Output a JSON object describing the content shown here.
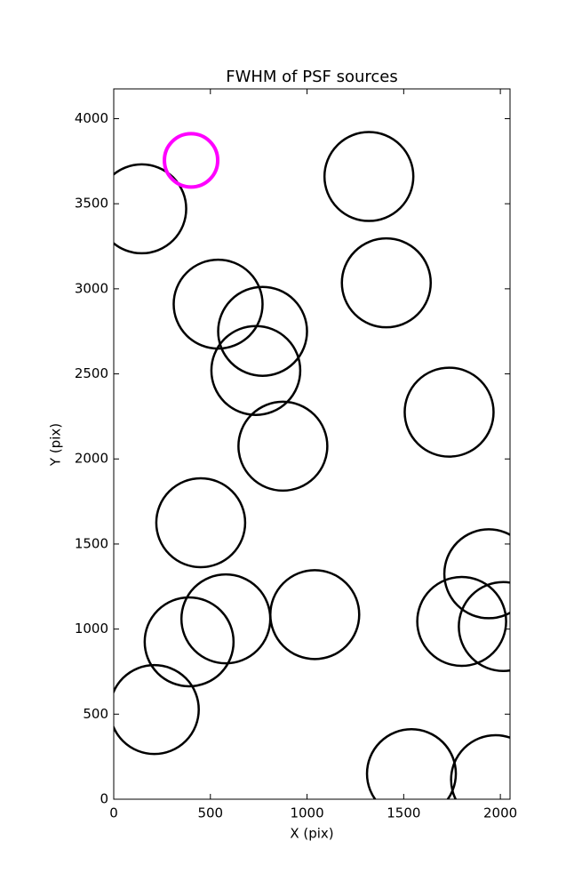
{
  "chart_data": {
    "type": "scatter",
    "title": "FWHM of PSF sources",
    "x_label": "X (pix)",
    "y_label": "Y (pix)",
    "series": [
      {
        "color": "#000000",
        "x": [
          145,
          1320,
          540,
          770,
          1410,
          735,
          1735,
          875,
          450,
          1940,
          390,
          580,
          1040,
          1800,
          2015,
          210,
          1540,
          1975
        ],
        "values": [
          3470,
          3660,
          2910,
          2750,
          3035,
          2520,
          2275,
          2075,
          1625,
          1325,
          925,
          1060,
          1085,
          1045,
          1015,
          527,
          150,
          115
        ]
      },
      {
        "color": "#ff00ff",
        "x": [
          400
        ],
        "values": [
          3755
        ]
      }
    ],
    "xlim": [
      0,
      2050
    ],
    "ylim": [
      0,
      4175
    ],
    "xticks": [
      0,
      500,
      1000,
      1500,
      2000
    ],
    "yticks": [
      0,
      500,
      1000,
      1500,
      2000,
      2500,
      3000,
      3500,
      4000
    ]
  }
}
